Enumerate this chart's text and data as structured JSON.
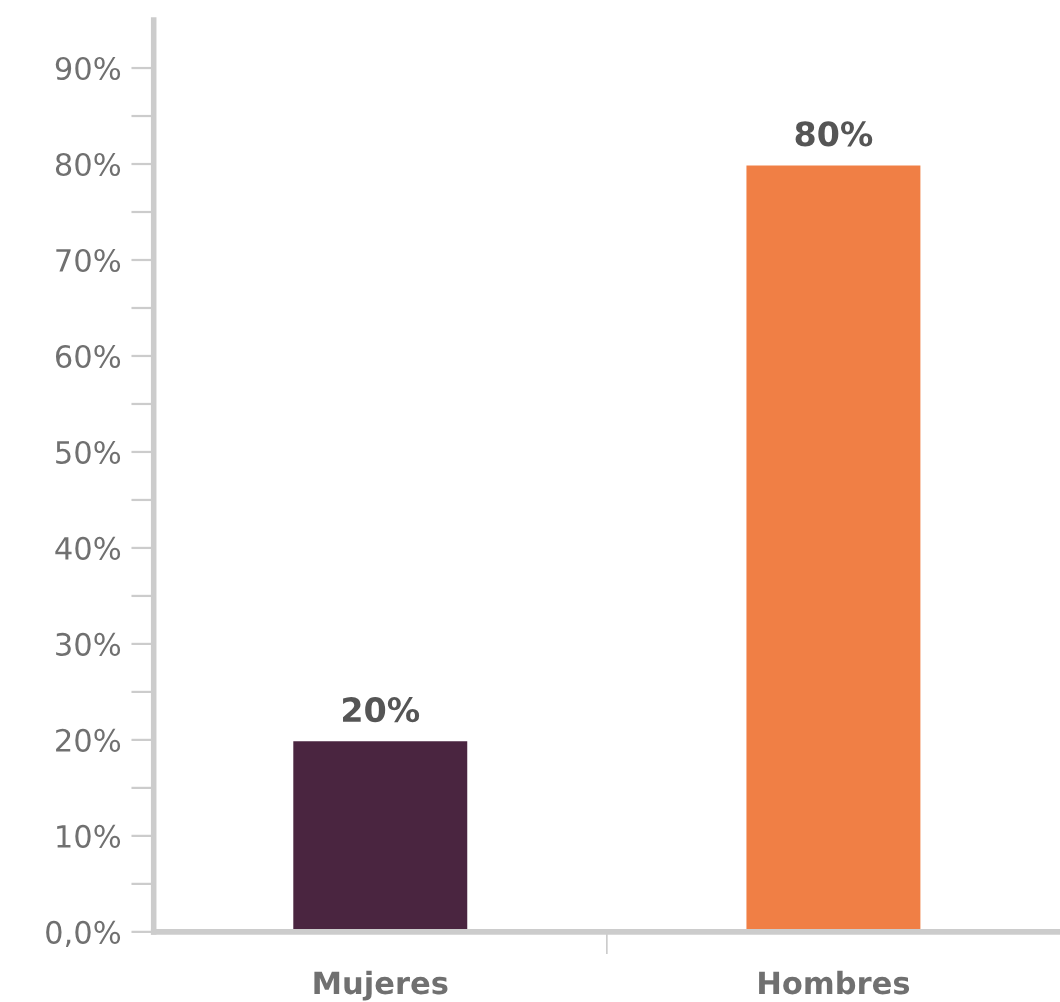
{
  "chart_data": {
    "type": "bar",
    "categories": [
      "Mujeres",
      "Hombres"
    ],
    "values": [
      20,
      80
    ],
    "colors": [
      "#4a2540",
      "#f07f45"
    ],
    "value_labels": [
      "20%",
      "80%"
    ],
    "ylim": [
      0,
      95
    ],
    "yticks": [
      {
        "value": 0,
        "label": "0,0%"
      },
      {
        "value": 5,
        "label": null
      },
      {
        "value": 10,
        "label": "10%"
      },
      {
        "value": 15,
        "label": null
      },
      {
        "value": 20,
        "label": "20%"
      },
      {
        "value": 25,
        "label": null
      },
      {
        "value": 30,
        "label": "30%"
      },
      {
        "value": 35,
        "label": null
      },
      {
        "value": 40,
        "label": "40%"
      },
      {
        "value": 45,
        "label": null
      },
      {
        "value": 50,
        "label": "50%"
      },
      {
        "value": 55,
        "label": null
      },
      {
        "value": 60,
        "label": "60%"
      },
      {
        "value": 65,
        "label": null
      },
      {
        "value": 70,
        "label": "70%"
      },
      {
        "value": 75,
        "label": null
      },
      {
        "value": 80,
        "label": "80%"
      },
      {
        "value": 85,
        "label": null
      },
      {
        "value": 90,
        "label": "90%"
      }
    ],
    "grid": false,
    "legend": false
  }
}
